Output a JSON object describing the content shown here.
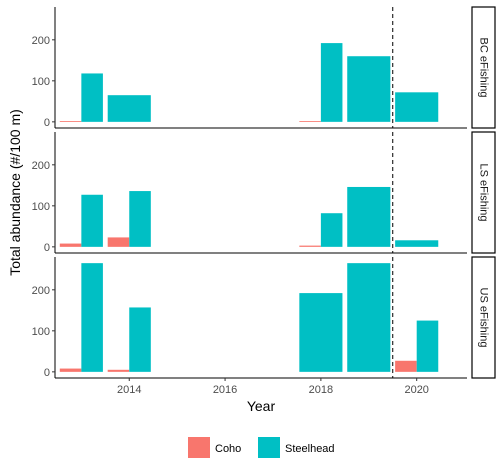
{
  "chart_data": {
    "type": "bar",
    "xlabel": "Year",
    "ylabel": "Total abundance (#/100 m)",
    "x_ticks": [
      2014,
      2016,
      2018,
      2020
    ],
    "y_ticks": [
      0,
      100,
      200
    ],
    "ylim": [
      -15,
      280
    ],
    "xlim": [
      2012.45,
      2021.05
    ],
    "vline_x": 2019.5,
    "grid": false,
    "legend_position": "bottom",
    "colors": {
      "Coho": "#F8766D",
      "Steelhead": "#00BFC4"
    },
    "legend": [
      "Coho",
      "Steelhead"
    ],
    "panels": [
      {
        "strip_label": "BC eFishing",
        "bars": [
          {
            "year": 2013,
            "series": "Coho",
            "value": 2
          },
          {
            "year": 2013,
            "series": "Steelhead",
            "value": 118
          },
          {
            "year": 2014,
            "series": "Steelhead",
            "value": 65
          },
          {
            "year": 2018,
            "series": "Coho",
            "value": 2
          },
          {
            "year": 2018,
            "series": "Steelhead",
            "value": 192
          },
          {
            "year": 2019,
            "series": "Steelhead",
            "value": 160
          },
          {
            "year": 2020,
            "series": "Steelhead",
            "value": 72
          }
        ]
      },
      {
        "strip_label": "LS eFishing",
        "bars": [
          {
            "year": 2013,
            "series": "Coho",
            "value": 8
          },
          {
            "year": 2013,
            "series": "Steelhead",
            "value": 127
          },
          {
            "year": 2014,
            "series": "Coho",
            "value": 23
          },
          {
            "year": 2014,
            "series": "Steelhead",
            "value": 136
          },
          {
            "year": 2018,
            "series": "Coho",
            "value": 3
          },
          {
            "year": 2018,
            "series": "Steelhead",
            "value": 82
          },
          {
            "year": 2019,
            "series": "Steelhead",
            "value": 146
          },
          {
            "year": 2020,
            "series": "Steelhead",
            "value": 16
          }
        ]
      },
      {
        "strip_label": "US eFishing",
        "bars": [
          {
            "year": 2013,
            "series": "Coho",
            "value": 8
          },
          {
            "year": 2013,
            "series": "Steelhead",
            "value": 265
          },
          {
            "year": 2014,
            "series": "Coho",
            "value": 5
          },
          {
            "year": 2014,
            "series": "Steelhead",
            "value": 157
          },
          {
            "year": 2018,
            "series": "Steelhead",
            "value": 192
          },
          {
            "year": 2019,
            "series": "Steelhead",
            "value": 265
          },
          {
            "year": 2020,
            "series": "Coho",
            "value": 27
          },
          {
            "year": 2020,
            "series": "Steelhead",
            "value": 125
          }
        ]
      }
    ]
  }
}
